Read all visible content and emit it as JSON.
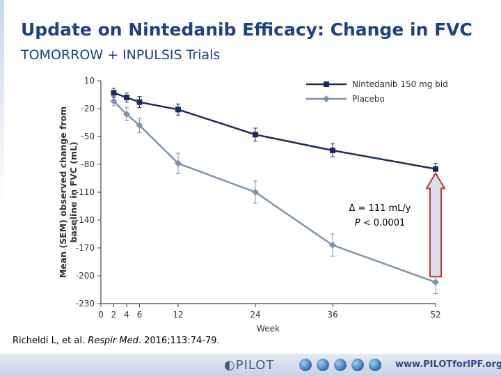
{
  "slide": {
    "title": "Update on Nintedanib Efficacy: Change in FVC",
    "subtitle": "TOMORROW + INPULSIS Trials",
    "citation_pre": "Richeldi L, et al. ",
    "citation_journal": "Respir Med",
    "citation_post": ". 2016;113:74-79.",
    "footer_logo": "PILOT",
    "footer_url": "www.PILOTforIPF.org"
  },
  "chart_data": {
    "type": "line",
    "xlabel": "Week",
    "ylabel_line1": "Mean (SEM) observed change from",
    "ylabel_line2": "baseline in FVC (mL)",
    "x": [
      0,
      2,
      4,
      6,
      12,
      24,
      36,
      52
    ],
    "x_ticks": [
      "0",
      "2",
      "4",
      "6",
      "12",
      "24",
      "36",
      "52"
    ],
    "y_ticks": [
      10,
      -20,
      -50,
      -80,
      -110,
      -140,
      -170,
      -200,
      -230
    ],
    "ylim": [
      -230,
      10
    ],
    "xlim": [
      0,
      52
    ],
    "grid": false,
    "legend_position": "top-right",
    "series": [
      {
        "name": "Nintedanib 150 mg bid",
        "color": "#1c2a5c",
        "marker": "square",
        "x": [
          2,
          4,
          6,
          12,
          24,
          36,
          52
        ],
        "values": [
          -3,
          -8,
          -13,
          -21,
          -48,
          -65,
          -85
        ],
        "err": [
          5,
          5,
          6,
          6,
          7,
          7,
          6
        ]
      },
      {
        "name": "Placebo",
        "color": "#7f93a8",
        "marker": "diamond",
        "x": [
          2,
          4,
          6,
          12,
          24,
          36,
          52
        ],
        "values": [
          -12,
          -26,
          -38,
          -79,
          -110,
          -167,
          -207
        ],
        "err": [
          5,
          7,
          8,
          11,
          12,
          12,
          12
        ]
      }
    ],
    "annotation": {
      "delta": "Δ = 111 mL/y",
      "p_italic": "P",
      "p_rest": " < 0.0001"
    },
    "arrow_color": "#d9e1f0"
  }
}
